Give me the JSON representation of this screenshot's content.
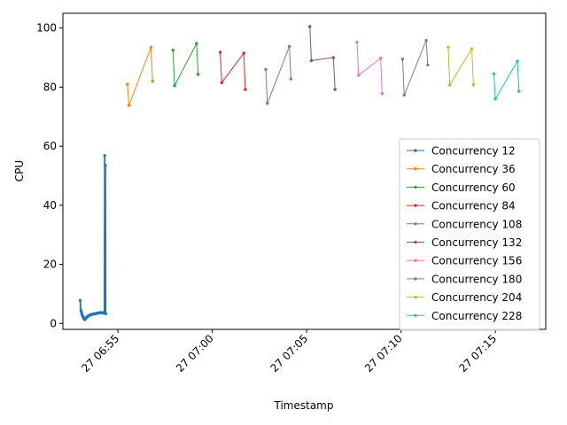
{
  "chart_data": {
    "type": "line",
    "xlabel": "Timestamp",
    "ylabel": "CPU",
    "x_range": [
      "06:52:05",
      "07:17:40"
    ],
    "ylim": [
      -2,
      105
    ],
    "x_ticks": [
      {
        "time": "06:55",
        "label": "27 06:55"
      },
      {
        "time": "07:00",
        "label": "27 07:00"
      },
      {
        "time": "07:05",
        "label": "27 07:05"
      },
      {
        "time": "07:10",
        "label": "27 07:10"
      },
      {
        "time": "07:15",
        "label": "27 07:15"
      }
    ],
    "y_ticks": [
      0,
      20,
      40,
      60,
      80,
      100
    ],
    "grid": false,
    "legend_position": "lower right",
    "series": [
      {
        "name": "Concurrency 12",
        "color": "#1f77b4",
        "points": [
          [
            "06:53:00",
            7.8
          ],
          [
            "06:53:02",
            4.5
          ],
          [
            "06:53:04",
            3.8
          ],
          [
            "06:53:06",
            3.0
          ],
          [
            "06:53:08",
            2.5
          ],
          [
            "06:53:10",
            2.0
          ],
          [
            "06:53:12",
            1.6
          ],
          [
            "06:53:14",
            1.3
          ],
          [
            "06:53:16",
            1.5
          ],
          [
            "06:53:18",
            1.8
          ],
          [
            "06:53:21",
            2.1
          ],
          [
            "06:53:24",
            2.4
          ],
          [
            "06:53:27",
            2.6
          ],
          [
            "06:53:30",
            2.8
          ],
          [
            "06:53:33",
            3.0
          ],
          [
            "06:53:36",
            3.0
          ],
          [
            "06:53:39",
            3.1
          ],
          [
            "06:53:42",
            3.2
          ],
          [
            "06:53:45",
            3.3
          ],
          [
            "06:53:48",
            3.3
          ],
          [
            "06:53:51",
            3.4
          ],
          [
            "06:53:54",
            3.5
          ],
          [
            "06:53:57",
            3.5
          ],
          [
            "06:54:00",
            3.6
          ],
          [
            "06:54:03",
            3.6
          ],
          [
            "06:54:06",
            3.7
          ],
          [
            "06:54:09",
            3.6
          ],
          [
            "06:54:12",
            3.5
          ],
          [
            "06:54:15",
            3.7
          ],
          [
            "06:54:17",
            3.8
          ],
          [
            "06:54:18",
            56.8
          ],
          [
            "06:54:19",
            3.5
          ],
          [
            "06:54:20",
            53.5
          ],
          [
            "06:54:21",
            3.3
          ]
        ]
      },
      {
        "name": "Concurrency 36",
        "color": "#ff7f0e",
        "points": [
          [
            "06:55:30",
            81.0
          ],
          [
            "06:55:35",
            73.8
          ],
          [
            "06:56:45",
            93.5
          ],
          [
            "06:56:50",
            82.0
          ]
        ]
      },
      {
        "name": "Concurrency 60",
        "color": "#2ca02c",
        "points": [
          [
            "06:57:55",
            92.5
          ],
          [
            "06:58:00",
            80.5
          ],
          [
            "06:59:10",
            94.8
          ],
          [
            "06:59:15",
            84.3
          ]
        ]
      },
      {
        "name": "Concurrency 84",
        "color": "#d62728",
        "points": [
          [
            "07:00:25",
            91.8
          ],
          [
            "07:00:30",
            81.5
          ],
          [
            "07:01:40",
            91.5
          ],
          [
            "07:01:45",
            79.2
          ]
        ]
      },
      {
        "name": "Concurrency 108",
        "color": "#9467bd",
        "points": [
          [
            "07:02:50",
            86.0
          ],
          [
            "07:02:55",
            74.5
          ],
          [
            "07:04:05",
            93.8
          ],
          [
            "07:04:10",
            82.8
          ]
        ]
      },
      {
        "name": "Concurrency 132",
        "color": "#8c564b",
        "points": [
          [
            "07:05:10",
            100.5
          ],
          [
            "07:05:15",
            89.0
          ],
          [
            "07:06:25",
            90.0
          ],
          [
            "07:06:30",
            79.2
          ]
        ]
      },
      {
        "name": "Concurrency 156",
        "color": "#e377c2",
        "points": [
          [
            "07:07:40",
            95.2
          ],
          [
            "07:07:45",
            84.0
          ],
          [
            "07:08:55",
            89.8
          ],
          [
            "07:09:00",
            77.8
          ]
        ]
      },
      {
        "name": "Concurrency 180",
        "color": "#7f7f7f",
        "points": [
          [
            "07:10:05",
            89.5
          ],
          [
            "07:10:10",
            77.3
          ],
          [
            "07:11:20",
            95.8
          ],
          [
            "07:11:25",
            87.5
          ]
        ]
      },
      {
        "name": "Concurrency 204",
        "color": "#bcbd22",
        "points": [
          [
            "07:12:30",
            93.5
          ],
          [
            "07:12:35",
            80.7
          ],
          [
            "07:13:45",
            93.0
          ],
          [
            "07:13:50",
            80.8
          ]
        ]
      },
      {
        "name": "Concurrency 228",
        "color": "#17becf",
        "points": [
          [
            "07:14:55",
            84.5
          ],
          [
            "07:15:00",
            76.0
          ],
          [
            "07:16:10",
            88.8
          ],
          [
            "07:16:15",
            78.6
          ]
        ]
      }
    ]
  }
}
